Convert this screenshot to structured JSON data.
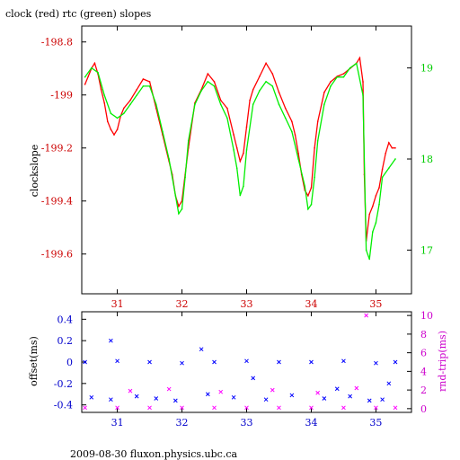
{
  "chart_data": [
    {
      "type": "line",
      "title": "clock (red) rtc (green) slopes",
      "ylabel": "clockslope",
      "x_ticks": [
        31,
        32,
        33,
        34,
        35
      ],
      "xlim": [
        30.45,
        35.55
      ],
      "ylim_left": [
        -199.75,
        -198.74
      ],
      "y_ticks_left": [
        -198.8,
        -199,
        -199.2,
        -199.4,
        -199.6
      ],
      "y_tick_labels_left": [
        "-198.8",
        "-199",
        "-199.2",
        "-199.4",
        "-199.6"
      ],
      "ylim_right": [
        16.52,
        19.46
      ],
      "y_ticks_right": [
        19,
        18,
        17
      ],
      "y_tick_labels_right": [
        "19",
        "18",
        "17"
      ],
      "colors": {
        "axis_left": "#cc0000",
        "axis_right": "#00cc00",
        "clock": "#ff0000",
        "rtc": "#00ee00"
      },
      "series": [
        {
          "name": "clock",
          "axis": "left",
          "x": [
            30.5,
            30.55,
            30.6,
            30.65,
            30.7,
            30.75,
            30.8,
            30.85,
            30.9,
            30.95,
            31.0,
            31.05,
            31.1,
            31.2,
            31.3,
            31.4,
            31.5,
            31.6,
            31.7,
            31.8,
            31.85,
            31.9,
            31.95,
            32.0,
            32.05,
            32.1,
            32.2,
            32.3,
            32.4,
            32.5,
            32.6,
            32.7,
            32.8,
            32.85,
            32.9,
            32.95,
            33.0,
            33.05,
            33.1,
            33.2,
            33.3,
            33.4,
            33.5,
            33.6,
            33.7,
            33.75,
            33.8,
            33.85,
            33.9,
            33.95,
            34.0,
            34.05,
            34.1,
            34.2,
            34.3,
            34.4,
            34.5,
            34.6,
            34.7,
            34.75,
            34.8,
            34.82,
            34.85,
            34.9,
            34.95,
            35.0,
            35.05,
            35.1,
            35.15,
            35.2,
            35.25,
            35.3
          ],
          "y": [
            -198.96,
            -198.93,
            -198.9,
            -198.88,
            -198.92,
            -198.98,
            -199.03,
            -199.1,
            -199.13,
            -199.15,
            -199.13,
            -199.08,
            -199.05,
            -199.02,
            -198.98,
            -198.94,
            -198.95,
            -199.05,
            -199.15,
            -199.25,
            -199.3,
            -199.38,
            -199.42,
            -199.4,
            -199.3,
            -199.2,
            -199.03,
            -198.98,
            -198.92,
            -198.95,
            -199.02,
            -199.05,
            -199.15,
            -199.2,
            -199.25,
            -199.22,
            -199.12,
            -199.02,
            -198.98,
            -198.93,
            -198.88,
            -198.92,
            -198.99,
            -199.05,
            -199.1,
            -199.15,
            -199.22,
            -199.3,
            -199.36,
            -199.38,
            -199.35,
            -199.2,
            -199.1,
            -198.99,
            -198.95,
            -198.93,
            -198.92,
            -198.9,
            -198.88,
            -198.86,
            -198.95,
            -199.3,
            -199.55,
            -199.45,
            -199.42,
            -199.38,
            -199.35,
            -199.28,
            -199.22,
            -199.18,
            -199.2,
            -199.2
          ]
        },
        {
          "name": "rtc",
          "axis": "right",
          "x": [
            30.5,
            30.6,
            30.7,
            30.8,
            30.9,
            31.0,
            31.1,
            31.2,
            31.3,
            31.4,
            31.5,
            31.6,
            31.7,
            31.8,
            31.9,
            31.95,
            32.0,
            32.05,
            32.1,
            32.2,
            32.3,
            32.4,
            32.5,
            32.6,
            32.7,
            32.8,
            32.85,
            32.9,
            32.95,
            33.0,
            33.1,
            33.2,
            33.3,
            33.4,
            33.5,
            33.6,
            33.7,
            33.8,
            33.9,
            33.95,
            34.0,
            34.05,
            34.1,
            34.2,
            34.3,
            34.4,
            34.5,
            34.6,
            34.7,
            34.8,
            34.85,
            34.9,
            34.95,
            35.0,
            35.05,
            35.1,
            35.2,
            35.3
          ],
          "y": [
            18.9,
            19.0,
            18.95,
            18.7,
            18.5,
            18.45,
            18.5,
            18.6,
            18.7,
            18.8,
            18.8,
            18.6,
            18.3,
            18.0,
            17.6,
            17.4,
            17.45,
            17.8,
            18.2,
            18.6,
            18.75,
            18.85,
            18.8,
            18.6,
            18.45,
            18.1,
            17.9,
            17.6,
            17.7,
            18.1,
            18.6,
            18.75,
            18.85,
            18.8,
            18.6,
            18.45,
            18.3,
            18.0,
            17.7,
            17.45,
            17.5,
            17.8,
            18.2,
            18.6,
            18.8,
            18.9,
            18.9,
            19.0,
            19.05,
            18.7,
            17.0,
            16.9,
            17.2,
            17.3,
            17.5,
            17.8,
            17.9,
            18.0
          ]
        }
      ]
    },
    {
      "type": "scatter",
      "ylabel_left": "offset(ms)",
      "ylabel_right": "rnd-trip(ms)",
      "x_ticks": [
        31,
        32,
        33,
        34,
        35
      ],
      "xlim": [
        30.45,
        35.55
      ],
      "ylim_left": [
        -0.47,
        0.47
      ],
      "y_ticks_left": [
        0.4,
        0.2,
        0,
        -0.2,
        -0.4
      ],
      "y_tick_labels_left": [
        "0.4",
        "0.2",
        "0",
        "-0.2",
        "-0.4"
      ],
      "ylim_right": [
        -0.4,
        10.4
      ],
      "y_ticks_right": [
        0,
        2,
        4,
        6,
        8,
        10
      ],
      "y_tick_labels_right": [
        "0",
        "2",
        "4",
        "6",
        "8",
        "10"
      ],
      "colors": {
        "axis_left": "#0000cc",
        "axis_right": "#cc00cc",
        "offset": "#0000ff",
        "rnd_trip": "#ff00ff"
      },
      "series": [
        {
          "name": "offset",
          "axis": "left",
          "x": [
            30.5,
            31.0,
            31.5,
            32.0,
            32.5,
            33.0,
            33.5,
            34.0,
            34.5,
            35.0,
            35.3,
            30.6,
            30.9,
            31.3,
            31.6,
            31.9,
            32.4,
            32.8,
            33.3,
            33.7,
            34.2,
            34.6,
            34.9,
            35.1,
            30.9,
            32.3,
            33.1,
            34.4,
            35.2
          ],
          "y": [
            0.0,
            0.01,
            0.0,
            -0.01,
            0.0,
            0.01,
            0.0,
            0.0,
            0.01,
            -0.01,
            0.0,
            -0.33,
            -0.35,
            -0.32,
            -0.34,
            -0.36,
            -0.3,
            -0.33,
            -0.35,
            -0.31,
            -0.34,
            -0.32,
            -0.36,
            -0.35,
            0.2,
            0.12,
            -0.15,
            -0.25,
            -0.2
          ]
        },
        {
          "name": "rnd-trip",
          "axis": "right",
          "x": [
            30.5,
            31.0,
            31.5,
            32.0,
            32.5,
            33.0,
            33.5,
            34.0,
            34.5,
            35.0,
            35.3,
            31.2,
            31.8,
            32.6,
            33.4,
            34.1,
            34.7,
            34.85
          ],
          "y": [
            0.1,
            0.1,
            0.1,
            0.1,
            0.1,
            0.1,
            0.1,
            0.1,
            0.1,
            0.1,
            0.1,
            1.9,
            2.1,
            1.8,
            2.0,
            1.7,
            2.2,
            10.0
          ]
        }
      ]
    }
  ],
  "footer": "2009-08-30 fluxon.physics.ubc.ca"
}
